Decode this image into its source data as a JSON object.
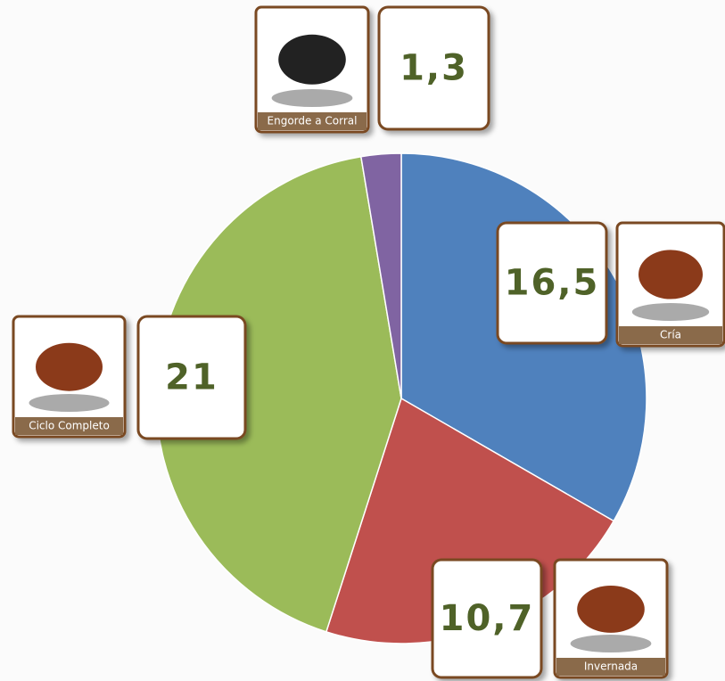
{
  "chart_data": {
    "type": "pie",
    "categories": [
      "Cría",
      "Invernada",
      "Ciclo Completo",
      "Engorde a Corral"
    ],
    "values": [
      16.5,
      10.7,
      21,
      1.3
    ],
    "value_labels": [
      "16,5",
      "10,7",
      "21",
      "1,3"
    ],
    "colors": [
      "#4f81bd",
      "#c0504d",
      "#9bbb59",
      "#8064a2"
    ]
  }
}
